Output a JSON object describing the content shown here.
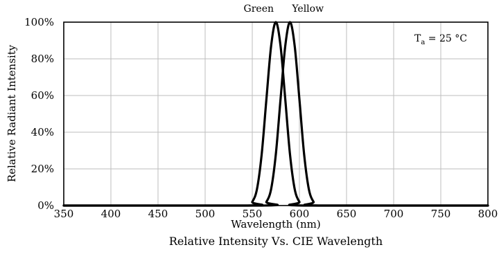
{
  "chart_data": {
    "type": "line",
    "title": "Relative Intensity Vs. CIE Wavelength",
    "xlabel": "Wavelength (nm)",
    "ylabel": "Relative Radiant Intensity",
    "xlim": [
      350,
      800
    ],
    "ylim": [
      0,
      100
    ],
    "x_ticks": [
      "350",
      "400",
      "450",
      "500",
      "550",
      "600",
      "650",
      "700",
      "750",
      "800"
    ],
    "y_ticks": [
      "0%",
      "20%",
      "40%",
      "60%",
      "80%",
      "100%"
    ],
    "grid": true,
    "annotation": {
      "symbol": "T",
      "subscript": "a",
      "value": " = 25 °C"
    },
    "series": [
      {
        "name": "Green",
        "x": [
          350,
          545,
          550,
          555,
          560,
          565,
          570,
          575,
          580,
          585,
          590,
          595,
          600,
          605,
          800
        ],
        "y": [
          0,
          0,
          2,
          9,
          28,
          58,
          87,
          100,
          87,
          58,
          28,
          9,
          2,
          0,
          0
        ]
      },
      {
        "name": "Yellow",
        "x": [
          350,
          560,
          565,
          570,
          575,
          580,
          585,
          590,
          595,
          600,
          605,
          610,
          615,
          620,
          800
        ],
        "y": [
          0,
          0,
          2,
          9,
          28,
          58,
          87,
          100,
          87,
          58,
          28,
          9,
          2,
          0,
          0
        ]
      }
    ]
  }
}
